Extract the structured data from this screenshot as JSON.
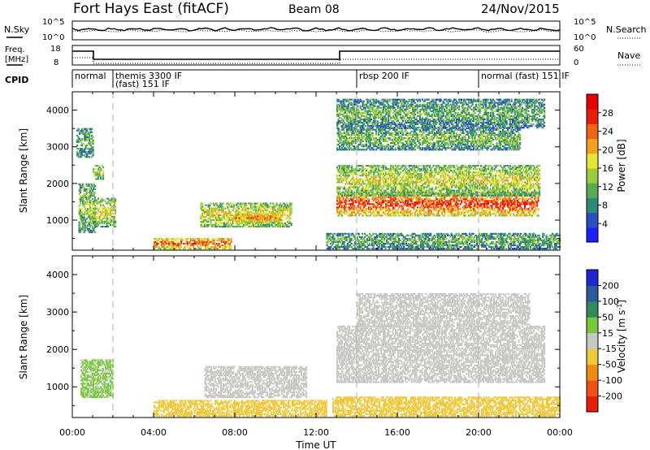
{
  "header": {
    "station": "Fort Hays East (fitACF)",
    "beam": "Beam 08",
    "date": "24/Nov/2015"
  },
  "noise_panel": {
    "left_label": "N.Sky",
    "left_ticks": [
      "10^5",
      "10^0"
    ],
    "right_label": "N.Search",
    "right_ticks": [
      "10^5",
      "10^0"
    ]
  },
  "freq_panel": {
    "left_label_1": "Freq.",
    "left_label_2": "[MHz]",
    "left_ticks": [
      "18",
      "8"
    ],
    "right_label": "Nave",
    "right_ticks": [
      "60",
      "0"
    ]
  },
  "cpid": {
    "label": "CPID",
    "segments": [
      {
        "start": 0,
        "end": 2,
        "lines": [
          "normal"
        ]
      },
      {
        "start": 2,
        "end": 14,
        "lines": [
          "themis 3300 IF",
          "(fast) 151 IF"
        ]
      },
      {
        "start": 14,
        "end": 20,
        "lines": [
          "rbsp 200 IF"
        ]
      },
      {
        "start": 20,
        "end": 24,
        "lines": [
          "normal (fast) 151 IF"
        ]
      }
    ]
  },
  "x_axis": {
    "label": "Time UT",
    "ticks": [
      "00:00",
      "04:00",
      "08:00",
      "12:00",
      "16:00",
      "20:00",
      "00:00"
    ]
  },
  "power_panel": {
    "ylabel": "Slant Range [km]",
    "yticks": [
      "1000",
      "2000",
      "3000",
      "4000"
    ],
    "colorbar_label": "Power [dB]",
    "colorbar_ticks": [
      "4",
      "8",
      "12",
      "16",
      "20",
      "24",
      "28"
    ],
    "colorbar_colors": [
      "#1e1eff",
      "#2850c0",
      "#2e8a78",
      "#5aaa50",
      "#9ccc3c",
      "#e6e632",
      "#f5a01e",
      "#f06414",
      "#e61e0a",
      "#e60000"
    ]
  },
  "velocity_panel": {
    "ylabel": "Slant Range [km]",
    "yticks": [
      "1000",
      "2000",
      "3000",
      "4000"
    ],
    "colorbar_label": "Velocity [m s^-1]",
    "colorbar_ticks": [
      "200",
      "100",
      "50",
      "15",
      "-15",
      "-50",
      "-100",
      "-200"
    ],
    "colorbar_colors": [
      "#1e28d2",
      "#2c5aa0",
      "#2e8c5a",
      "#78c83c",
      "#c8c8c3",
      "#f0c83c",
      "#f08c14",
      "#f05014",
      "#e61e0a"
    ]
  },
  "chart_data": {
    "type": "heatmap",
    "x_range_hours": [
      0,
      24
    ],
    "y_range_km": [
      180,
      4500
    ],
    "power_regions": [
      {
        "t0": 0.2,
        "t1": 1.0,
        "r0": 2700,
        "r1": 3500,
        "level": 0.35
      },
      {
        "t0": 0.3,
        "t1": 1.1,
        "r0": 650,
        "r1": 2000,
        "level": 0.45
      },
      {
        "t0": 1.0,
        "t1": 1.5,
        "r0": 2100,
        "r1": 2500,
        "level": 0.55
      },
      {
        "t0": 1.0,
        "t1": 2.1,
        "r0": 800,
        "r1": 1600,
        "level": 0.55
      },
      {
        "t0": 4.0,
        "t1": 7.8,
        "r0": 200,
        "r1": 500,
        "level": 0.85
      },
      {
        "t0": 6.3,
        "t1": 10.8,
        "r0": 800,
        "r1": 1450,
        "level": 0.6
      },
      {
        "t0": 8.0,
        "t1": 10.2,
        "r0": 900,
        "r1": 1200,
        "level": 0.8
      },
      {
        "t0": 13.0,
        "t1": 22.9,
        "r0": 1100,
        "r1": 1750,
        "level": 0.9
      },
      {
        "t0": 13.0,
        "t1": 23.0,
        "r0": 1650,
        "r1": 2500,
        "level": 0.55
      },
      {
        "t0": 13.0,
        "t1": 22.0,
        "r0": 2900,
        "r1": 3500,
        "level": 0.4
      },
      {
        "t0": 13.0,
        "t1": 23.2,
        "r0": 3500,
        "r1": 4300,
        "level": 0.35
      },
      {
        "t0": 12.5,
        "t1": 24.0,
        "r0": 200,
        "r1": 650,
        "level": 0.35
      }
    ],
    "velocity_regions": [
      {
        "t0": 0.4,
        "t1": 2.0,
        "r0": 700,
        "r1": 1700,
        "value": 20
      },
      {
        "t0": 4.0,
        "t1": 12.5,
        "r0": 200,
        "r1": 650,
        "value": -40
      },
      {
        "t0": 6.5,
        "t1": 11.5,
        "r0": 700,
        "r1": 1550,
        "value": 0
      },
      {
        "t0": 13.0,
        "t1": 23.2,
        "r0": 1100,
        "r1": 2600,
        "value": 0
      },
      {
        "t0": 14.0,
        "t1": 22.5,
        "r0": 2600,
        "r1": 3500,
        "value": 0
      },
      {
        "t0": 12.8,
        "t1": 24.0,
        "r0": 200,
        "r1": 700,
        "value": -30
      }
    ]
  }
}
